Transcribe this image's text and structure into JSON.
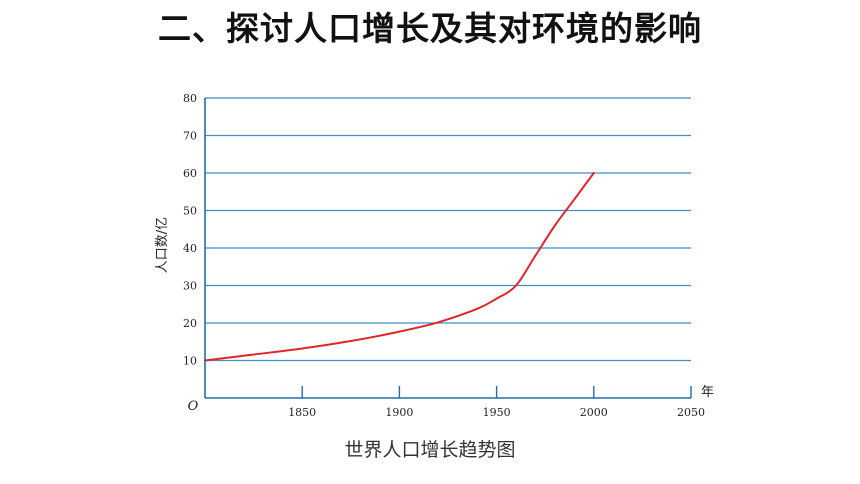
{
  "page": {
    "title": "二、探讨人口增长及其对环境的影响",
    "caption": "世界人口增长趋势图"
  },
  "colors": {
    "grid": "#3f8fc6",
    "axis": "#1f6fb0",
    "curve": "#e0262a"
  },
  "chart_data": {
    "type": "line",
    "xlabel": "年",
    "ylabel": "人口数/亿",
    "origin_label": "O",
    "xlim": [
      1800,
      2050
    ],
    "ylim": [
      0,
      80
    ],
    "x_ticks": [
      1850,
      1900,
      1950,
      2000,
      2050
    ],
    "y_ticks": [
      10,
      20,
      30,
      40,
      50,
      60,
      70,
      80
    ],
    "grid": "horizontal",
    "series": [
      {
        "x": [
          1800,
          1825,
          1850,
          1875,
          1900,
          1920,
          1940,
          1950,
          1960,
          1970,
          1980,
          1990,
          2000
        ],
        "values": [
          10,
          11.6,
          13.2,
          15.2,
          17.7,
          20.2,
          23.8,
          26.5,
          30,
          38,
          46,
          53,
          60
        ]
      }
    ]
  }
}
